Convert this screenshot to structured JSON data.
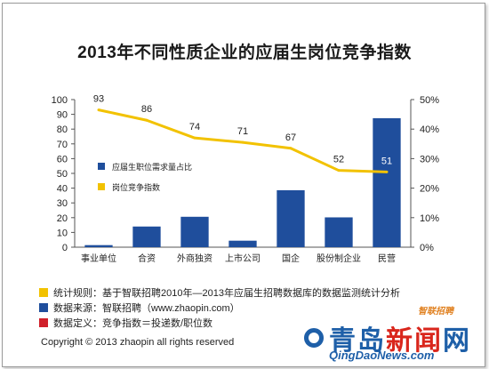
{
  "chart_data": {
    "type": "bar",
    "title": "2013年不同性质企业的应届生岗位竞争指数",
    "categories": [
      "事业单位",
      "合资",
      "外商独资",
      "上市公司",
      "国企",
      "股份制企业",
      "民营"
    ],
    "series": [
      {
        "name": "应届生职位需求量占比",
        "type": "bar",
        "axis": "right",
        "values": [
          0.7,
          7,
          10.3,
          2.2,
          19.3,
          10.1,
          43.7
        ],
        "unit": "%"
      },
      {
        "name": "岗位竞争指数",
        "type": "line",
        "axis": "left",
        "values": [
          93,
          86,
          74,
          71,
          67,
          52,
          51
        ],
        "data_labels": [
          "93",
          "86",
          "74",
          "71",
          "67",
          "52",
          "51"
        ]
      }
    ],
    "y_left": {
      "ylim": [
        0,
        100
      ],
      "ticks": [
        "0",
        "10",
        "20",
        "30",
        "40",
        "50",
        "60",
        "70",
        "80",
        "90",
        "100"
      ]
    },
    "y_right": {
      "ylim": [
        0,
        50
      ],
      "ticks": [
        "0%",
        "10%",
        "20%",
        "30%",
        "40%",
        "50%"
      ]
    },
    "legend_placement": "center-left inside plot",
    "grid": false,
    "colors": {
      "bar": "#1f4e9c",
      "line": "#f2c200",
      "axis": "#555555"
    }
  },
  "notes": [
    {
      "color": "#f2c200",
      "text": "统计规则：基于智联招聘2010年—2013年应届生招聘数据库的数据监测统计分析"
    },
    {
      "color": "#1f4e9c",
      "text": "数据来源：智联招聘（www.zhaopin.com）"
    },
    {
      "color": "#d0202a",
      "text": "数据定义：竞争指数＝投递数/职位数"
    }
  ],
  "copyright": "Copyright © 2013 zhaopin all rights reserved",
  "logo": {
    "text": "智联招聘",
    "icon": "zhaopin-logo"
  },
  "watermark": {
    "text_blue": "青岛",
    "text_red": "新闻",
    "text_end": "网",
    "url": "QingDaoNews.com",
    "icon": "location-pin-icon"
  }
}
